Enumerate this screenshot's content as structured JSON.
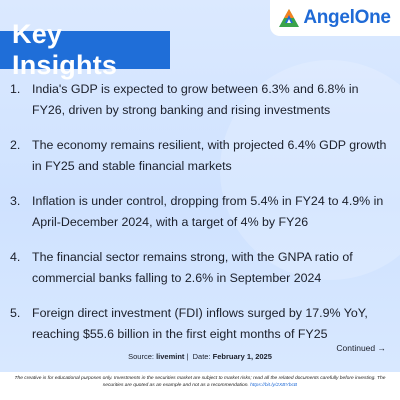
{
  "brand": {
    "name": "AngelOne",
    "colors": {
      "primary": "#1f6ed8",
      "logo_orange": "#f58220",
      "logo_green": "#3aa34a",
      "background": "#cfe2ff"
    }
  },
  "title": "Key Insights",
  "insights": [
    {
      "num": "1.",
      "text": "India's GDP is expected to grow between 6.3% and 6.8% in FY26, driven by strong banking and rising investments"
    },
    {
      "num": "2.",
      "text": "The economy remains resilient, with projected 6.4% GDP growth in FY25 and stable financial markets"
    },
    {
      "num": "3.",
      "text": "Inflation is under control, dropping from 5.4% in FY24 to 4.9% in April-December 2024, with a target of 4% by FY26"
    },
    {
      "num": "4.",
      "text": "The financial sector remains strong, with the GNPA ratio of commercial banks falling to 2.6% in September 2024"
    },
    {
      "num": "5.",
      "text": "Foreign direct investment (FDI) inflows surged by 17.9% YoY, reaching $55.6 billion in the first eight months of FY25"
    }
  ],
  "source": {
    "label": "Source:",
    "value": "livemint",
    "date_label": "Date:",
    "date_value": "February 1, 2025"
  },
  "continued": "Continued →",
  "disclaimer": {
    "text": "The creative is for educational purposes only. Investments in the securities market are subject to market risks; read all the related documents carefully before investing. The securities are quoted as an example and not as a recommendation.",
    "link": "https://bit.ly/2XBYbcB"
  }
}
